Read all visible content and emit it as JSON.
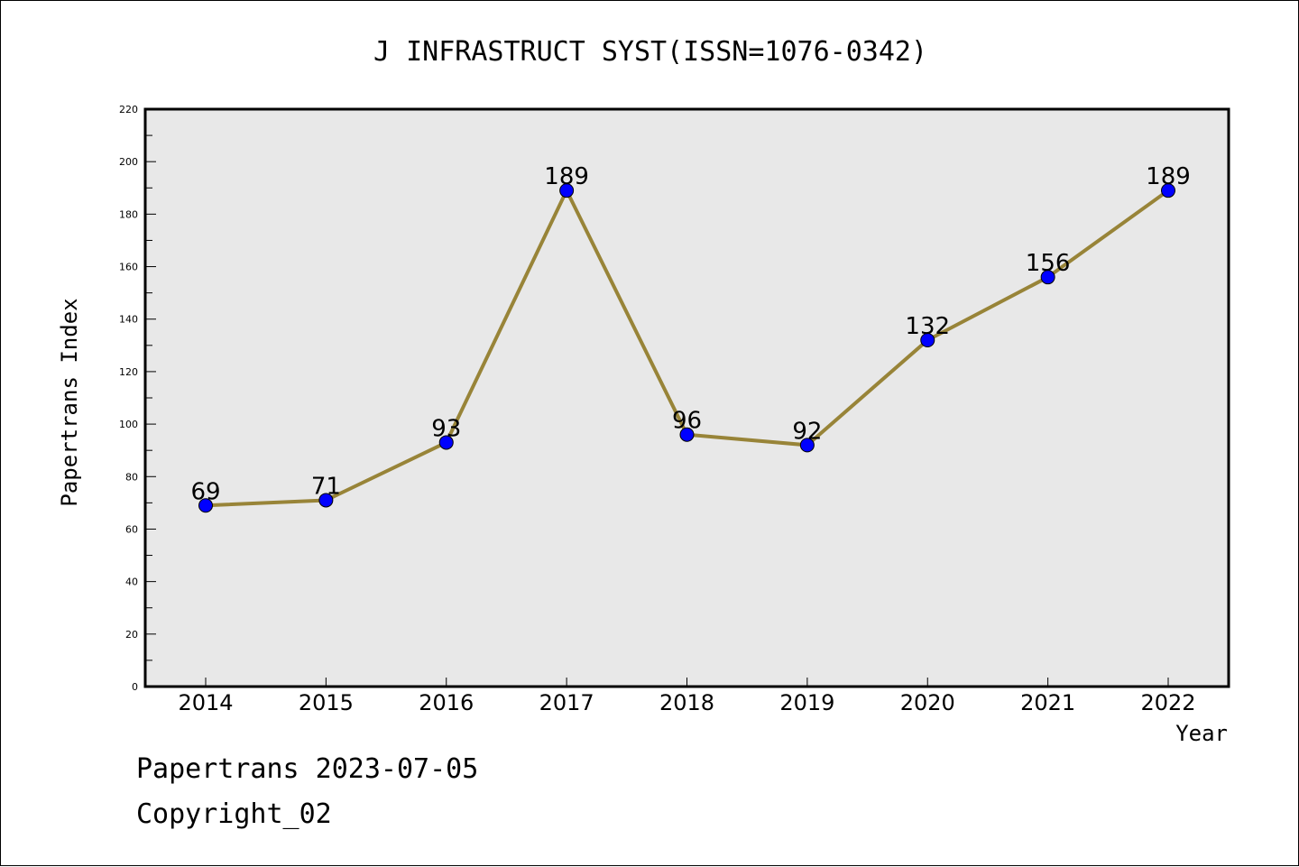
{
  "chart_data": {
    "type": "line",
    "title": "J INFRASTRUCT SYST(ISSN=1076-0342)",
    "xlabel": "Year",
    "ylabel": "Papertrans Index",
    "categories": [
      "2014",
      "2015",
      "2016",
      "2017",
      "2018",
      "2019",
      "2020",
      "2021",
      "2022"
    ],
    "series": [
      {
        "values": [
          69,
          71,
          93,
          189,
          96,
          92,
          132,
          156,
          189
        ],
        "line_color": "#988438",
        "marker_color": "#0000ff"
      }
    ],
    "ylim": [
      0,
      220
    ],
    "y_ticks": [
      0,
      20,
      40,
      60,
      80,
      100,
      120,
      140,
      160,
      180,
      200,
      220
    ],
    "plot_background": "#e8e8e8",
    "grid": false,
    "data_labels": true
  },
  "footer": {
    "source": "Papertrans 2023-07-05",
    "copyright": "Copyright_02"
  }
}
